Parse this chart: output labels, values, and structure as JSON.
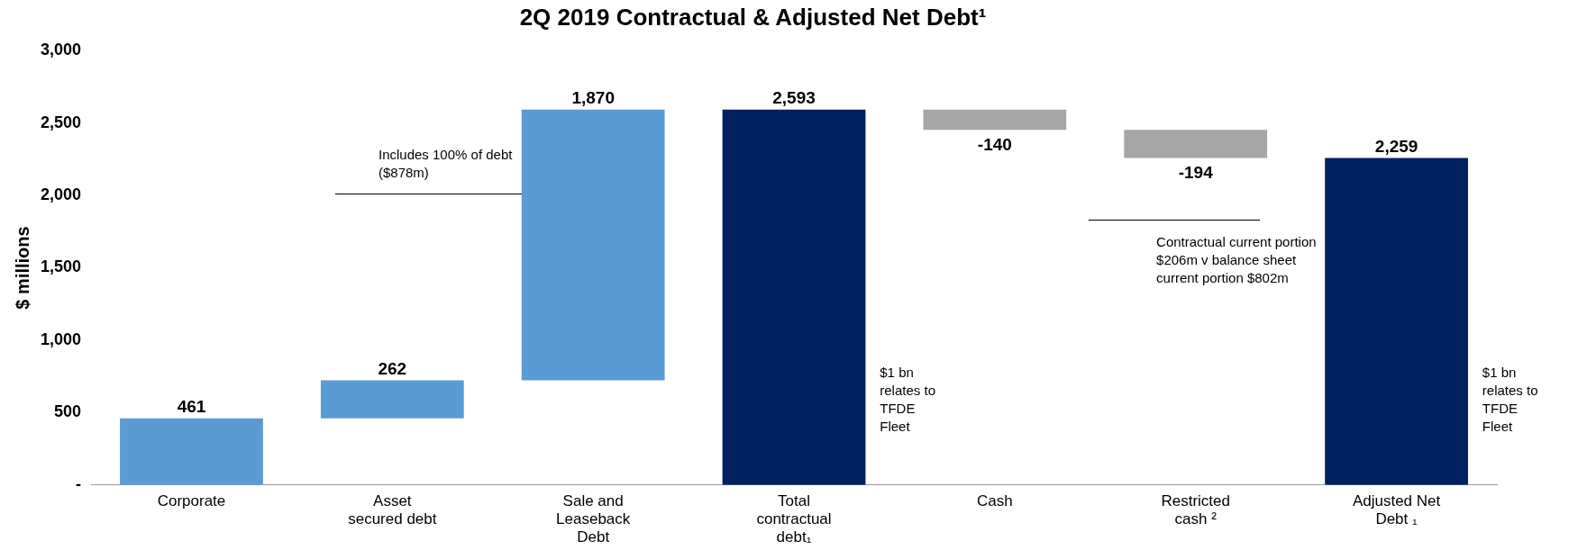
{
  "chart_data": {
    "type": "bar",
    "title": "2Q 2019 Contractual & Adjusted Net Debt¹",
    "ylabel": "$ millions",
    "categories": [
      "Corporate",
      "Asset secured debt",
      "Sale and Leaseback Debt",
      "Total contractual debt₁",
      "Cash",
      "Restricted cash ²",
      "Adjusted Net Debt ₁"
    ],
    "values": [
      461,
      262,
      1870,
      2593,
      -140,
      -194,
      2259
    ],
    "base": [
      0,
      461,
      723,
      0,
      2593,
      2453,
      0
    ],
    "colors": [
      "#5b9bd5",
      "#5b9bd5",
      "#5b9bd5",
      "#002060",
      "#a6a6a6",
      "#a6a6a6",
      "#002060"
    ],
    "value_labels": [
      "461",
      "262",
      "1,870",
      "2,593",
      "-140",
      "-194",
      "2,259"
    ],
    "ylim": [
      0,
      3000
    ],
    "yticks": [
      {
        "value": 0,
        "label": "-"
      },
      {
        "value": 500,
        "label": "500"
      },
      {
        "value": 1000,
        "label": "1,000"
      },
      {
        "value": 1500,
        "label": "1,500"
      },
      {
        "value": 2000,
        "label": "2,000"
      },
      {
        "value": 2500,
        "label": "2,500"
      },
      {
        "value": 3000,
        "label": "3,000"
      }
    ],
    "grid": false,
    "legend": false,
    "annotations": [
      "Includes 100% of debt ($878m)",
      "Contractual current portion $206m v balance sheet current portion $802m",
      "$1 bn relates to TFDE Fleet",
      "$1 bn relates to TFDE Fleet"
    ]
  }
}
